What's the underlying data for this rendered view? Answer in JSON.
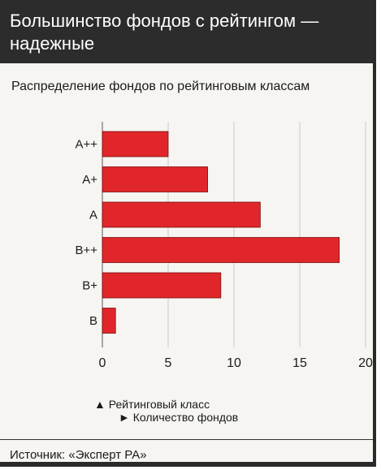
{
  "header": {
    "title": "Большинство фондов с рейтингом — надежные"
  },
  "subtitle": "Распределение фондов по рейтинговым классам",
  "legend": {
    "y_axis_note": "▲ Рейтинговый класс",
    "x_axis_note": "► Количество фондов"
  },
  "source": "Источник: «Эксперт РА»",
  "colors": {
    "bar": "#e0262b",
    "header_bg": "#2c2c2c",
    "grid": "#c9c9c9"
  },
  "chart_data": {
    "type": "bar",
    "orientation": "horizontal",
    "categories": [
      "A++",
      "A+",
      "A",
      "B++",
      "B+",
      "B"
    ],
    "category_labels": [
      "A++",
      "A+",
      "A",
      "B++",
      "B+",
      "B"
    ],
    "values": [
      5,
      8,
      12,
      18,
      9,
      1
    ],
    "xlim": [
      0,
      20
    ],
    "xticks": [
      0,
      5,
      10,
      15,
      20
    ],
    "xlabel": "Количество фондов",
    "ylabel": "Рейтинговый класс",
    "grid": true
  }
}
